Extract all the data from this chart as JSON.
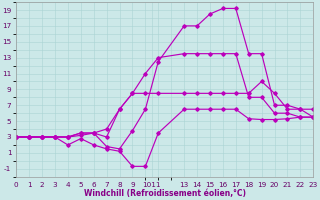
{
  "xlabel": "Windchill (Refroidissement éolien,°C)",
  "xlim": [
    0,
    23
  ],
  "ylim": [
    -2,
    20
  ],
  "yticks": [
    -1,
    1,
    3,
    5,
    7,
    9,
    11,
    13,
    15,
    17,
    19
  ],
  "ytick_labels": [
    "-1",
    "1",
    "3",
    "5",
    "7",
    "9",
    "11",
    "13",
    "15",
    "17",
    "19"
  ],
  "xtick_positions": [
    0,
    1,
    2,
    3,
    4,
    5,
    6,
    7,
    8,
    9,
    10.5,
    13,
    14,
    15,
    16,
    17,
    18,
    19,
    20,
    21,
    22,
    23
  ],
  "xtick_labels": [
    "0",
    "1",
    "2",
    "3",
    "4",
    "5",
    "6",
    "7",
    "8",
    "9",
    "1011",
    "13",
    "14",
    "15",
    "16",
    "17",
    "18",
    "19",
    "20",
    "21",
    "22",
    "23"
  ],
  "background_color": "#cce8e8",
  "grid_color": "#aad4d4",
  "line_color": "#bb00bb",
  "lines": [
    {
      "x": [
        0,
        1,
        2,
        3,
        4,
        5,
        6,
        7,
        8,
        9,
        10,
        11,
        13,
        14,
        15,
        16,
        17,
        18,
        19,
        20,
        21,
        22,
        23
      ],
      "y": [
        3,
        3,
        3,
        3,
        2.0,
        2.8,
        2.0,
        1.5,
        1.2,
        -0.7,
        -0.7,
        3.5,
        6.5,
        6.5,
        6.5,
        6.5,
        6.5,
        5.3,
        5.2,
        5.2,
        5.3,
        5.5,
        5.5
      ]
    },
    {
      "x": [
        0,
        1,
        2,
        3,
        4,
        5,
        6,
        7,
        8,
        9,
        10,
        11,
        13,
        14,
        15,
        16,
        17,
        18,
        19,
        20,
        21,
        22,
        23
      ],
      "y": [
        3,
        3,
        3,
        3,
        3.0,
        3.2,
        3.5,
        4.0,
        6.5,
        8.5,
        8.5,
        8.5,
        8.5,
        8.5,
        8.5,
        8.5,
        8.5,
        8.5,
        10.0,
        8.5,
        6.5,
        6.5,
        6.5
      ]
    },
    {
      "x": [
        0,
        1,
        2,
        3,
        4,
        5,
        6,
        7,
        8,
        9,
        10,
        11,
        13,
        14,
        15,
        16,
        17,
        18,
        19,
        20,
        21,
        22,
        23
      ],
      "y": [
        3,
        3,
        3,
        3,
        3.0,
        3.5,
        3.5,
        3.0,
        6.5,
        8.5,
        11.0,
        13.0,
        13.5,
        13.5,
        13.5,
        13.5,
        13.5,
        8.0,
        8.0,
        6.0,
        6.0,
        5.5,
        5.5
      ]
    },
    {
      "x": [
        0,
        1,
        2,
        3,
        4,
        5,
        6,
        7,
        8,
        9,
        10,
        11,
        13,
        14,
        15,
        16,
        17,
        18,
        19,
        20,
        21,
        22,
        23
      ],
      "y": [
        3,
        3,
        3,
        3,
        3.0,
        3.5,
        3.5,
        1.8,
        1.5,
        3.8,
        6.5,
        12.5,
        17.0,
        17.0,
        18.5,
        19.2,
        19.2,
        13.5,
        13.5,
        7.0,
        7.0,
        6.5,
        5.5
      ]
    }
  ]
}
